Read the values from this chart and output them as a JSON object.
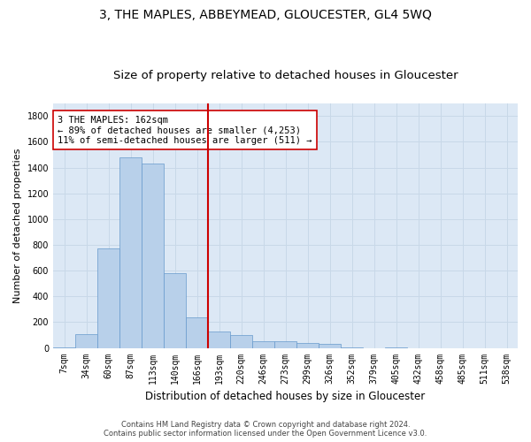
{
  "title": "3, THE MAPLES, ABBEYMEAD, GLOUCESTER, GL4 5WQ",
  "subtitle": "Size of property relative to detached houses in Gloucester",
  "xlabel": "Distribution of detached houses by size in Gloucester",
  "ylabel": "Number of detached properties",
  "bar_labels": [
    "7sqm",
    "34sqm",
    "60sqm",
    "87sqm",
    "113sqm",
    "140sqm",
    "166sqm",
    "193sqm",
    "220sqm",
    "246sqm",
    "273sqm",
    "299sqm",
    "326sqm",
    "352sqm",
    "379sqm",
    "405sqm",
    "432sqm",
    "458sqm",
    "485sqm",
    "511sqm",
    "538sqm"
  ],
  "bar_values": [
    5,
    110,
    770,
    1480,
    1430,
    580,
    240,
    130,
    100,
    55,
    55,
    35,
    30,
    5,
    0,
    5,
    0,
    0,
    0,
    0,
    0
  ],
  "bar_color": "#b8d0ea",
  "bar_edgecolor": "#6699cc",
  "vline_x_index": 6.5,
  "vline_color": "#cc0000",
  "annotation_lines": [
    "3 THE MAPLES: 162sqm",
    "← 89% of detached houses are smaller (4,253)",
    "11% of semi-detached houses are larger (511) →"
  ],
  "annotation_box_color": "#ffffff",
  "annotation_box_edgecolor": "#cc0000",
  "ylim": [
    0,
    1900
  ],
  "yticks": [
    0,
    200,
    400,
    600,
    800,
    1000,
    1200,
    1400,
    1600,
    1800
  ],
  "grid_color": "#c8d8e8",
  "background_color": "#dce8f5",
  "footer_line1": "Contains HM Land Registry data © Crown copyright and database right 2024.",
  "footer_line2": "Contains public sector information licensed under the Open Government Licence v3.0.",
  "title_fontsize": 10,
  "subtitle_fontsize": 9.5,
  "xlabel_fontsize": 8.5,
  "ylabel_fontsize": 8,
  "tick_fontsize": 7,
  "annotation_fontsize": 7.5,
  "fig_width": 6.0,
  "fig_height": 5.0
}
